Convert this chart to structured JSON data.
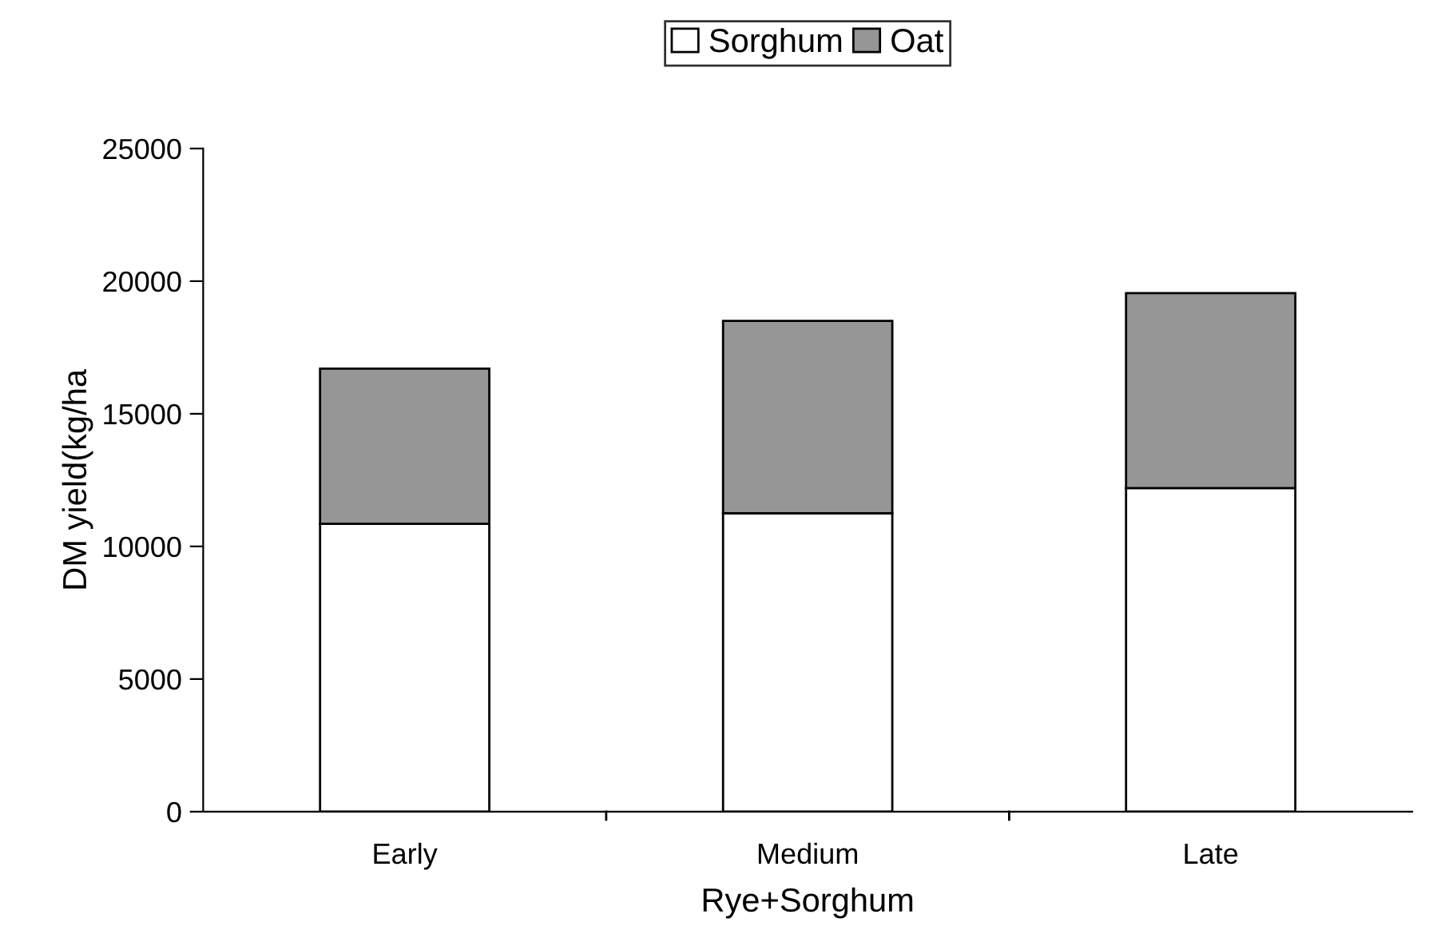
{
  "chart_data": {
    "type": "bar",
    "stacked": true,
    "xlabel": "Rye+Sorghum",
    "ylabel": "DM yield(kg/ha",
    "categories": [
      "Early",
      "Medium",
      "Late"
    ],
    "series": [
      {
        "name": "Sorghum",
        "color": "#ffffff",
        "values": [
          10850,
          11250,
          12200
        ]
      },
      {
        "name": "Oat",
        "color": "#969696",
        "values": [
          5850,
          7250,
          7350
        ]
      }
    ],
    "ylim": [
      0,
      25000
    ],
    "yticks": [
      0,
      5000,
      10000,
      15000,
      20000,
      25000
    ],
    "grid": false,
    "legend": "top"
  }
}
